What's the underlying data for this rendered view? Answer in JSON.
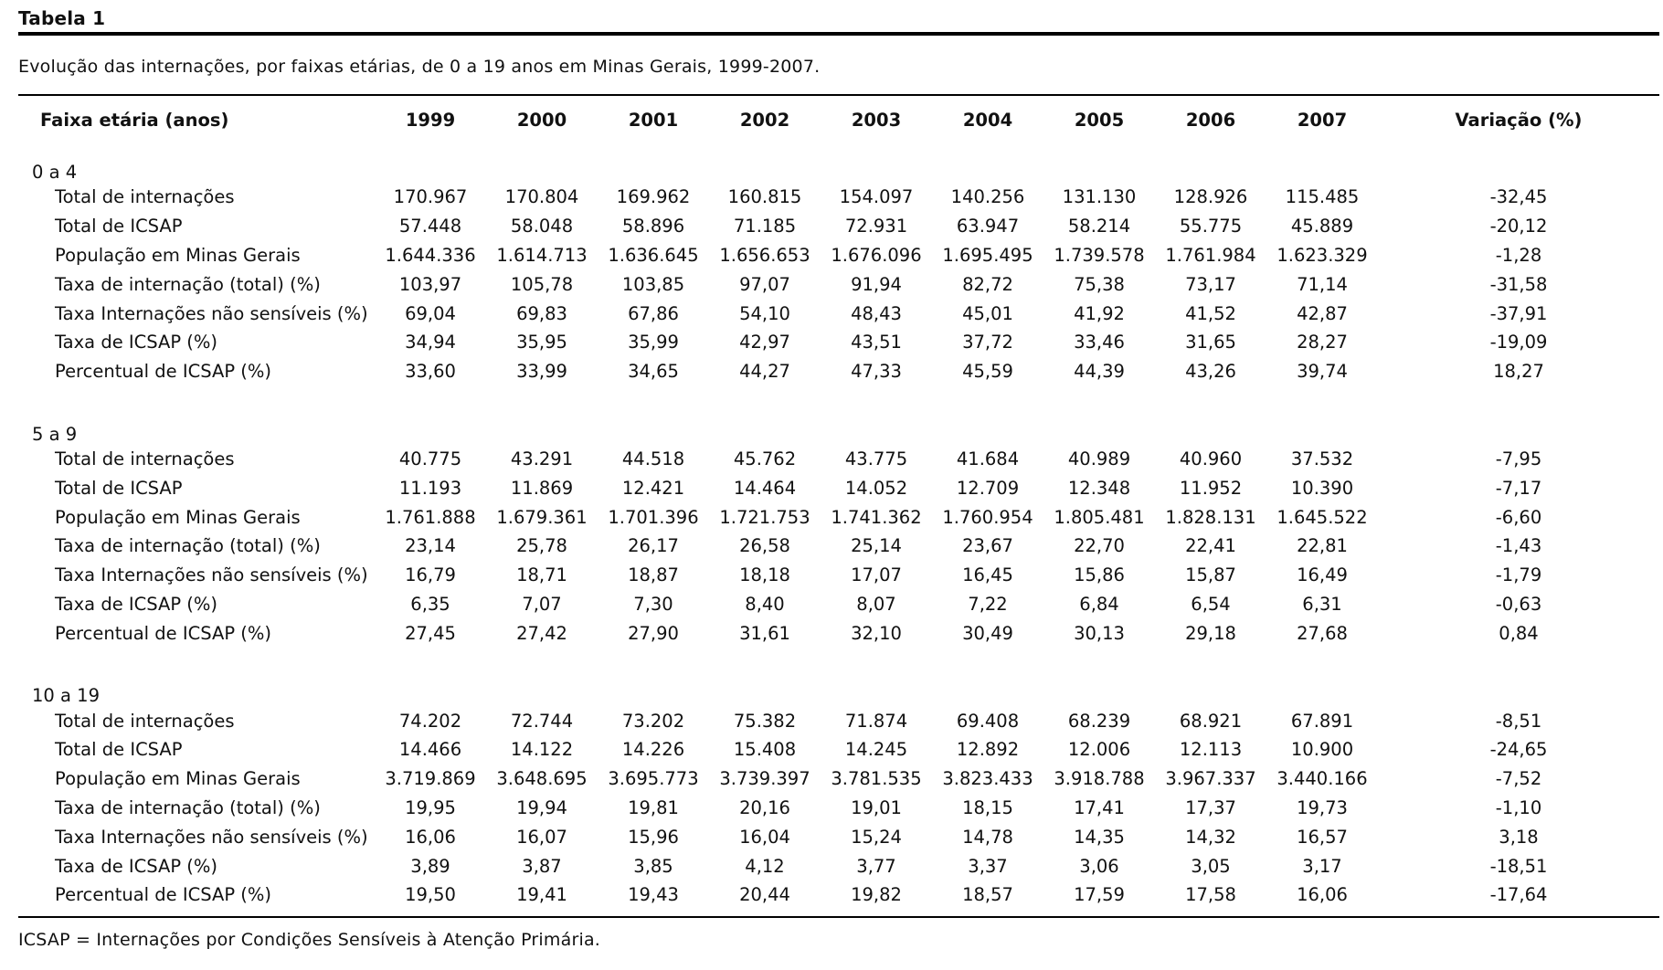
{
  "table_label": "Tabela 1",
  "caption": "Evolução das internações, por faixas etárias, de 0 a 19 anos em Minas Gerais, 1999-2007.",
  "headers": [
    "Faixa etária (anos)",
    "1999",
    "2000",
    "2001",
    "2002",
    "2003",
    "2004",
    "2005",
    "2006",
    "2007",
    "Variação (%)"
  ],
  "groups": [
    {
      "label": "0 a 4",
      "rows": [
        {
          "label": "Total de internações",
          "values": [
            "170.967",
            "170.804",
            "169.962",
            "160.815",
            "154.097",
            "140.256",
            "131.130",
            "128.926",
            "115.485",
            "-32,45"
          ]
        },
        {
          "label": "Total de ICSAP",
          "values": [
            "57.448",
            "58.048",
            "58.896",
            "71.185",
            "72.931",
            "63.947",
            "58.214",
            "55.775",
            "45.889",
            "-20,12"
          ]
        },
        {
          "label": "População em Minas Gerais",
          "values": [
            "1.644.336",
            "1.614.713",
            "1.636.645",
            "1.656.653",
            "1.676.096",
            "1.695.495",
            "1.739.578",
            "1.761.984",
            "1.623.329",
            "-1,28"
          ]
        },
        {
          "label": "Taxa de internação (total) (%)",
          "values": [
            "103,97",
            "105,78",
            "103,85",
            "97,07",
            "91,94",
            "82,72",
            "75,38",
            "73,17",
            "71,14",
            "-31,58"
          ]
        },
        {
          "label": "Taxa Internações não sensíveis (%)",
          "values": [
            "69,04",
            "69,83",
            "67,86",
            "54,10",
            "48,43",
            "45,01",
            "41,92",
            "41,52",
            "42,87",
            "-37,91"
          ]
        },
        {
          "label": "Taxa de ICSAP (%)",
          "values": [
            "34,94",
            "35,95",
            "35,99",
            "42,97",
            "43,51",
            "37,72",
            "33,46",
            "31,65",
            "28,27",
            "-19,09"
          ]
        },
        {
          "label": "Percentual de ICSAP (%)",
          "values": [
            "33,60",
            "33,99",
            "34,65",
            "44,27",
            "47,33",
            "45,59",
            "44,39",
            "43,26",
            "39,74",
            "18,27"
          ]
        }
      ]
    },
    {
      "label": "5 a 9",
      "rows": [
        {
          "label": "Total de internações",
          "values": [
            "40.775",
            "43.291",
            "44.518",
            "45.762",
            "43.775",
            "41.684",
            "40.989",
            "40.960",
            "37.532",
            "-7,95"
          ]
        },
        {
          "label": "Total de ICSAP",
          "values": [
            "11.193",
            "11.869",
            "12.421",
            "14.464",
            "14.052",
            "12.709",
            "12.348",
            "11.952",
            "10.390",
            "-7,17"
          ]
        },
        {
          "label": "População em Minas Gerais",
          "values": [
            "1.761.888",
            "1.679.361",
            "1.701.396",
            "1.721.753",
            "1.741.362",
            "1.760.954",
            "1.805.481",
            "1.828.131",
            "1.645.522",
            "-6,60"
          ]
        },
        {
          "label": "Taxa de internação (total) (%)",
          "values": [
            "23,14",
            "25,78",
            "26,17",
            "26,58",
            "25,14",
            "23,67",
            "22,70",
            "22,41",
            "22,81",
            "-1,43"
          ]
        },
        {
          "label": "Taxa Internações não sensíveis (%)",
          "values": [
            "16,79",
            "18,71",
            "18,87",
            "18,18",
            "17,07",
            "16,45",
            "15,86",
            "15,87",
            "16,49",
            "-1,79"
          ]
        },
        {
          "label": "Taxa de ICSAP (%)",
          "values": [
            "6,35",
            "7,07",
            "7,30",
            "8,40",
            "8,07",
            "7,22",
            "6,84",
            "6,54",
            "6,31",
            "-0,63"
          ]
        },
        {
          "label": "Percentual de ICSAP (%)",
          "values": [
            "27,45",
            "27,42",
            "27,90",
            "31,61",
            "32,10",
            "30,49",
            "30,13",
            "29,18",
            "27,68",
            "0,84"
          ]
        }
      ]
    },
    {
      "label": "10 a 19",
      "rows": [
        {
          "label": "Total de internações",
          "values": [
            "74.202",
            "72.744",
            "73.202",
            "75.382",
            "71.874",
            "69.408",
            "68.239",
            "68.921",
            "67.891",
            "-8,51"
          ]
        },
        {
          "label": "Total de ICSAP",
          "values": [
            "14.466",
            "14.122",
            "14.226",
            "15.408",
            "14.245",
            "12.892",
            "12.006",
            "12.113",
            "10.900",
            "-24,65"
          ]
        },
        {
          "label": "População em Minas Gerais",
          "values": [
            "3.719.869",
            "3.648.695",
            "3.695.773",
            "3.739.397",
            "3.781.535",
            "3.823.433",
            "3.918.788",
            "3.967.337",
            "3.440.166",
            "-7,52"
          ]
        },
        {
          "label": "Taxa de internação (total) (%)",
          "values": [
            "19,95",
            "19,94",
            "19,81",
            "20,16",
            "19,01",
            "18,15",
            "17,41",
            "17,37",
            "19,73",
            "-1,10"
          ]
        },
        {
          "label": "Taxa Internações não sensíveis (%)",
          "values": [
            "16,06",
            "16,07",
            "15,96",
            "16,04",
            "15,24",
            "14,78",
            "14,35",
            "14,32",
            "16,57",
            "3,18"
          ]
        },
        {
          "label": "Taxa de ICSAP (%)",
          "values": [
            "3,89",
            "3,87",
            "3,85",
            "4,12",
            "3,77",
            "3,37",
            "3,06",
            "3,05",
            "3,17",
            "-18,51"
          ]
        },
        {
          "label": "Percentual de ICSAP (%)",
          "values": [
            "19,50",
            "19,41",
            "19,43",
            "20,44",
            "19,82",
            "18,57",
            "17,59",
            "17,58",
            "16,06",
            "-17,64"
          ]
        }
      ]
    }
  ],
  "footnote": "ICSAP = Internações por Condições Sensíveis à Atenção Primária."
}
